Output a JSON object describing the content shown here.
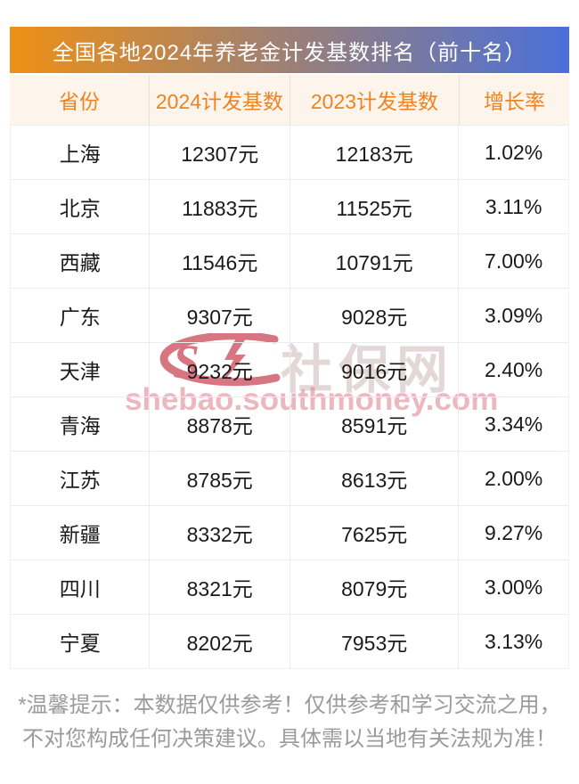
{
  "title": "全国各地2024年养老金计发基数排名（前十名）",
  "table": {
    "columns": [
      "省份",
      "2024计发基数",
      "2023计发基数",
      "增长率"
    ],
    "rows": [
      [
        "上海",
        "12307元",
        "12183元",
        "1.02%"
      ],
      [
        "北京",
        "11883元",
        "11525元",
        "3.11%"
      ],
      [
        "西藏",
        "11546元",
        "10791元",
        "7.00%"
      ],
      [
        "广东",
        "9307元",
        "9028元",
        "3.09%"
      ],
      [
        "天津",
        "9232元",
        "9016元",
        "2.40%"
      ],
      [
        "青海",
        "8878元",
        "8591元",
        "3.34%"
      ],
      [
        "江苏",
        "8785元",
        "8613元",
        "2.00%"
      ],
      [
        "新疆",
        "8332元",
        "7625元",
        "9.27%"
      ],
      [
        "四川",
        "8321元",
        "8079元",
        "3.00%"
      ],
      [
        "宁夏",
        "8202元",
        "7953元",
        "3.13%"
      ]
    ]
  },
  "chart_data": {
    "type": "table",
    "title": "全国各地2024年养老金计发基数排名（前十名）",
    "columns": [
      "省份",
      "2024计发基数",
      "2023计发基数",
      "增长率"
    ],
    "provinces": [
      "上海",
      "北京",
      "西藏",
      "广东",
      "天津",
      "青海",
      "江苏",
      "新疆",
      "四川",
      "宁夏"
    ],
    "base_2024_yuan": [
      12307,
      11883,
      11546,
      9307,
      9232,
      8878,
      8785,
      8332,
      8321,
      8202
    ],
    "base_2023_yuan": [
      12183,
      11525,
      10791,
      9028,
      9016,
      8591,
      8613,
      7625,
      8079,
      7953
    ],
    "growth_rate_pct": [
      1.02,
      3.11,
      7.0,
      3.09,
      2.4,
      3.34,
      2.0,
      9.27,
      3.0,
      3.13
    ]
  },
  "watermark": {
    "site_name": "社保网",
    "site_url": "shebao.southmoney.com"
  },
  "footer": {
    "line1": "*温馨提示：本数据仅供参考！仅供参考和学习交流之用，",
    "line2": "不对您构成任何决策建议。具体需以当地有关法规为准！"
  },
  "colors": {
    "title_gradient_left": "#ee9015",
    "title_gradient_right": "#4a70da",
    "header_bg": "#fdf5ec",
    "header_text": "#f0821f",
    "data_text": "#1a1a1a",
    "row_divider": "#e9edf3",
    "footer_text": "#9b9b9b",
    "watermark_red": "#bf2433",
    "watermark_pink": "#d87e89"
  }
}
